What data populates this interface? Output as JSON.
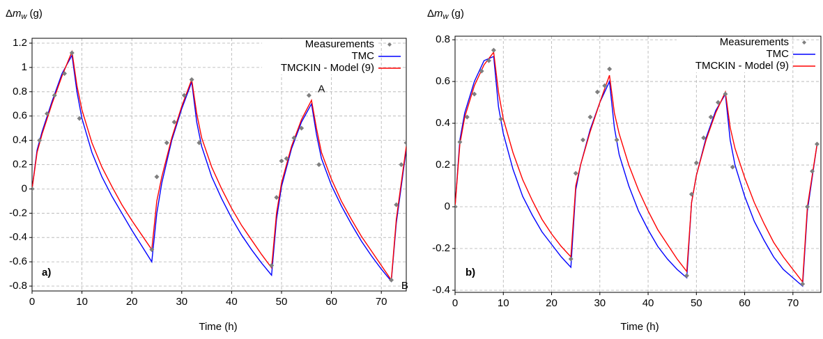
{
  "chart_data": [
    {
      "type": "line",
      "panel_label": "a)",
      "ylabel": [
        "Δ",
        "m",
        "w",
        "(g)"
      ],
      "xlabel": "Time (h)",
      "xlim": [
        0,
        75
      ],
      "ylim": [
        -0.84,
        1.24
      ],
      "xticks": [
        0,
        10,
        20,
        30,
        40,
        50,
        60,
        70
      ],
      "yticks": [
        1.2,
        1,
        0.8,
        0.6,
        0.4,
        0.2,
        0,
        -0.2,
        -0.4,
        -0.6,
        -0.8
      ],
      "grid": true,
      "legend": "upper right",
      "annotations": [
        "A",
        "B"
      ],
      "x": [
        0,
        1,
        2,
        4,
        6,
        8,
        9,
        10,
        12,
        14,
        16,
        18,
        20,
        22,
        24,
        25,
        26,
        28,
        30,
        32,
        33,
        34,
        36,
        38,
        40,
        42,
        44,
        46,
        48,
        49,
        50,
        52,
        54,
        56,
        57,
        58,
        60,
        62,
        64,
        66,
        68,
        70,
        72,
        73,
        74,
        75
      ],
      "measurements": {
        "name": "Measurements",
        "color": "#7f7f7f",
        "x": [
          0,
          1.5,
          3,
          4.5,
          6.5,
          8,
          9.5,
          24,
          25,
          27,
          28.5,
          30.5,
          32,
          33.5,
          48,
          49,
          50,
          51,
          52.5,
          54,
          55.5,
          57.5,
          72,
          73,
          74,
          75
        ],
        "values": [
          0,
          0.4,
          0.62,
          0.77,
          0.95,
          1.12,
          0.58,
          -0.5,
          0.1,
          0.38,
          0.55,
          0.77,
          0.9,
          0.38,
          -0.63,
          -0.07,
          0.23,
          0.25,
          0.42,
          0.5,
          0.77,
          0.2,
          -0.75,
          -0.13,
          0.2,
          0.38
        ]
      },
      "series": [
        {
          "name": "TMC",
          "color": "#0000ff",
          "values": [
            0,
            0.32,
            0.47,
            0.72,
            0.95,
            1.1,
            0.8,
            0.58,
            0.3,
            0.1,
            -0.06,
            -0.2,
            -0.34,
            -0.47,
            -0.6,
            -0.2,
            0.05,
            0.4,
            0.66,
            0.88,
            0.55,
            0.35,
            0.1,
            -0.08,
            -0.24,
            -0.38,
            -0.5,
            -0.61,
            -0.71,
            -0.25,
            0.02,
            0.33,
            0.55,
            0.7,
            0.45,
            0.25,
            0.03,
            -0.14,
            -0.29,
            -0.43,
            -0.55,
            -0.66,
            -0.76,
            -0.28,
            0.02,
            0.33
          ]
        },
        {
          "name": "TMCKIN - Model (9)",
          "color": "#ff0000",
          "values": [
            0,
            0.3,
            0.45,
            0.7,
            0.93,
            1.13,
            0.85,
            0.65,
            0.38,
            0.18,
            0.02,
            -0.13,
            -0.26,
            -0.38,
            -0.5,
            -0.1,
            0.1,
            0.42,
            0.68,
            0.9,
            0.62,
            0.42,
            0.18,
            0,
            -0.16,
            -0.3,
            -0.42,
            -0.54,
            -0.65,
            -0.2,
            0.05,
            0.35,
            0.57,
            0.73,
            0.5,
            0.3,
            0.08,
            -0.1,
            -0.25,
            -0.39,
            -0.51,
            -0.63,
            -0.75,
            -0.25,
            0.05,
            0.35
          ]
        }
      ]
    },
    {
      "type": "line",
      "panel_label": "b)",
      "ylabel": [
        "Δ",
        "m",
        "w",
        "(g)"
      ],
      "xlabel": "Time (h)",
      "xlim": [
        0,
        75.8
      ],
      "ylim": [
        -0.41,
        0.817
      ],
      "xticks": [
        0,
        10,
        20,
        30,
        40,
        50,
        60,
        70
      ],
      "yticks": [
        0.8,
        0.6,
        0.4,
        0.2,
        0,
        -0.2,
        -0.4
      ],
      "grid": true,
      "legend": "upper right",
      "x": [
        0,
        1,
        2,
        4,
        6,
        8,
        9,
        10,
        12,
        14,
        16,
        18,
        20,
        22,
        24,
        25,
        26,
        28,
        30,
        32,
        33,
        34,
        36,
        38,
        40,
        42,
        44,
        46,
        48,
        49,
        50,
        52,
        54,
        56,
        57,
        58,
        60,
        62,
        64,
        66,
        68,
        70,
        72,
        73,
        74,
        75
      ],
      "measurements": {
        "name": "Measurements",
        "color": "#7f7f7f",
        "x": [
          0,
          1,
          2.5,
          4,
          5.5,
          7,
          8,
          9.5,
          24,
          25,
          26.5,
          28,
          29.5,
          31,
          32,
          33.5,
          48,
          49,
          50,
          51.5,
          53,
          54.5,
          56,
          57.5,
          72,
          73,
          74,
          75
        ],
        "values": [
          0,
          0.31,
          0.43,
          0.54,
          0.65,
          0.7,
          0.75,
          0.42,
          -0.25,
          0.16,
          0.32,
          0.43,
          0.55,
          0.58,
          0.66,
          0.32,
          -0.33,
          0.06,
          0.21,
          0.33,
          0.43,
          0.5,
          0.54,
          0.19,
          -0.37,
          0,
          0.17,
          0.3
        ]
      },
      "series": [
        {
          "name": "TMC",
          "color": "#0000ff",
          "values": [
            0,
            0.32,
            0.45,
            0.6,
            0.7,
            0.72,
            0.48,
            0.35,
            0.18,
            0.05,
            -0.04,
            -0.12,
            -0.18,
            -0.24,
            -0.29,
            0.08,
            0.2,
            0.37,
            0.5,
            0.6,
            0.38,
            0.25,
            0.1,
            -0.02,
            -0.11,
            -0.19,
            -0.25,
            -0.3,
            -0.34,
            0.02,
            0.15,
            0.33,
            0.46,
            0.54,
            0.32,
            0.2,
            0.05,
            -0.07,
            -0.16,
            -0.24,
            -0.3,
            -0.34,
            -0.38,
            -0.02,
            0.14,
            0.3
          ]
        },
        {
          "name": "TMCKIN - Model (9)",
          "color": "#ff0000",
          "values": [
            0,
            0.3,
            0.43,
            0.58,
            0.68,
            0.74,
            0.55,
            0.42,
            0.26,
            0.13,
            0.03,
            -0.06,
            -0.13,
            -0.19,
            -0.24,
            0.1,
            0.2,
            0.36,
            0.5,
            0.63,
            0.45,
            0.35,
            0.2,
            0.08,
            -0.02,
            -0.11,
            -0.18,
            -0.25,
            -0.31,
            0.02,
            0.15,
            0.32,
            0.45,
            0.55,
            0.38,
            0.28,
            0.14,
            0.02,
            -0.08,
            -0.17,
            -0.24,
            -0.3,
            -0.36,
            0,
            0.15,
            0.3
          ]
        }
      ]
    }
  ]
}
